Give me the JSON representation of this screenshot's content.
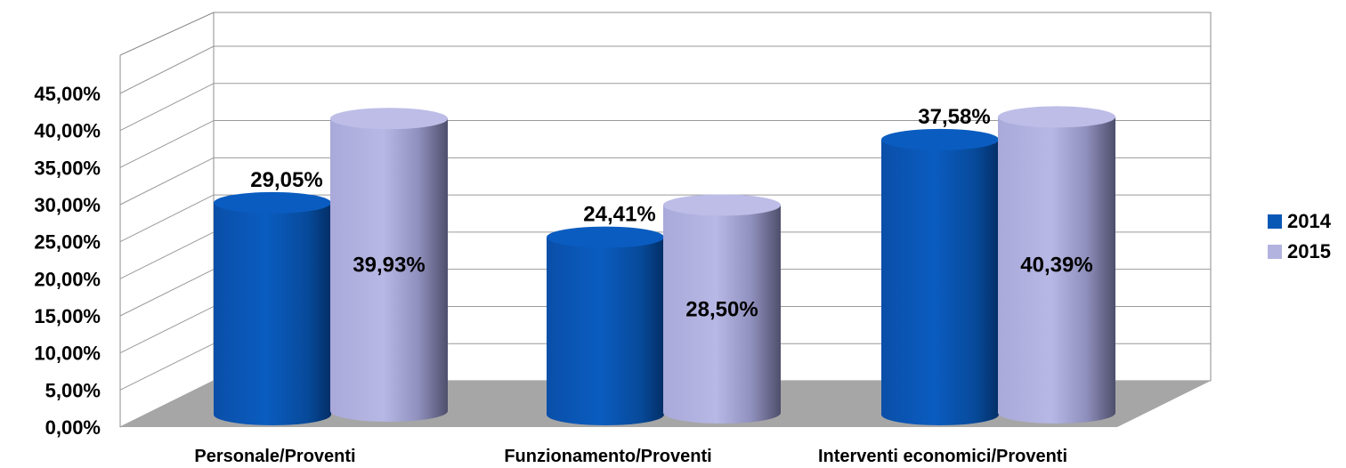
{
  "chart_data": {
    "type": "bar",
    "style": "3d-cylinder",
    "categories": [
      "Personale/Proventi",
      "Funzionamento/Proventi",
      "Interventi economici/Proventi"
    ],
    "series": [
      {
        "name": "2014",
        "values": [
          29.05,
          24.41,
          37.58
        ],
        "labels": [
          "29,05%",
          "24,41%",
          "37,58%"
        ],
        "color": "#0A58B5"
      },
      {
        "name": "2015",
        "values": [
          39.93,
          28.5,
          40.39
        ],
        "labels": [
          "39,93%",
          "28,50%",
          "40,39%"
        ],
        "color": "#B3B3E0"
      }
    ],
    "y_ticks": [
      "0,00%",
      "5,00%",
      "10,00%",
      "15,00%",
      "20,00%",
      "25,00%",
      "30,00%",
      "35,00%",
      "40,00%",
      "45,00%"
    ],
    "ylim": [
      0,
      45
    ],
    "ytick_step": 5,
    "grid": true,
    "legend_position": "right",
    "title": "",
    "xlabel": "",
    "ylabel": "",
    "colors": {
      "floor": "#A6A6A6",
      "gridline": "#9A9A9A",
      "wall_edge": "#8C8C8C"
    }
  }
}
